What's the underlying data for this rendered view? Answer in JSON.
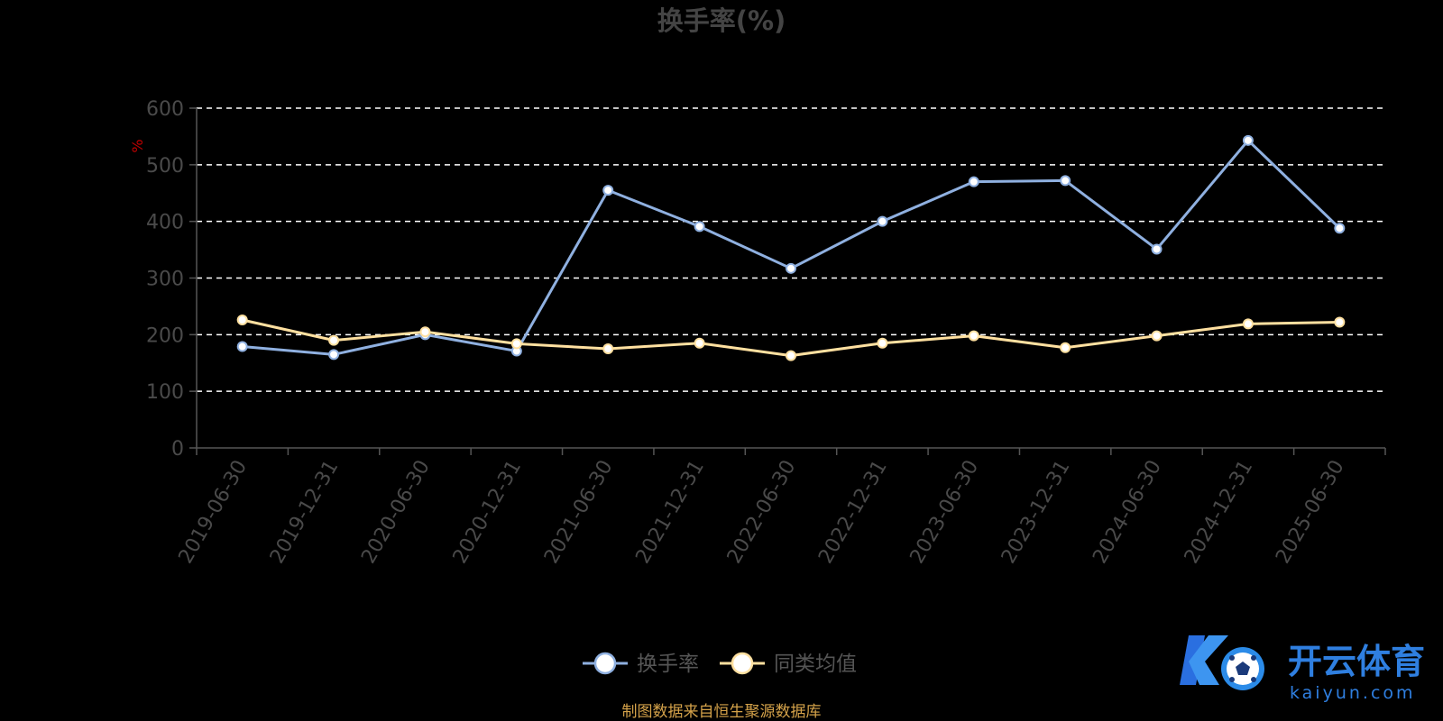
{
  "chart_data": {
    "type": "line",
    "title": "换手率(%)",
    "ylabel": "%",
    "xlabel": "",
    "ylim": [
      0,
      600
    ],
    "yticks": [
      0,
      100,
      200,
      300,
      400,
      500,
      600
    ],
    "grid": true,
    "legend_position": "bottom",
    "categories": [
      "2019-06-30",
      "2019-12-31",
      "2020-06-30",
      "2020-12-31",
      "2021-06-30",
      "2021-12-31",
      "2022-06-30",
      "2022-12-31",
      "2023-06-30",
      "2023-12-31",
      "2024-06-30",
      "2024-12-31",
      "2025-06-30"
    ],
    "series": [
      {
        "name": "换手率",
        "color": "#8fb0e0",
        "values": [
          179,
          165,
          200,
          171,
          455,
          391,
          317,
          400,
          470,
          472,
          351,
          543,
          388
        ]
      },
      {
        "name": "同类均值",
        "color": "#ffe0a0",
        "values": [
          226,
          190,
          205,
          184,
          175,
          185,
          163,
          185,
          198,
          177,
          198,
          219,
          222
        ]
      }
    ]
  },
  "footer": {
    "source": "制图数据来自恒生聚源数据库"
  },
  "watermark": {
    "brand": "开云体育",
    "domain": "kaiyun.com",
    "icon": "ko-soccer-logo-icon"
  }
}
